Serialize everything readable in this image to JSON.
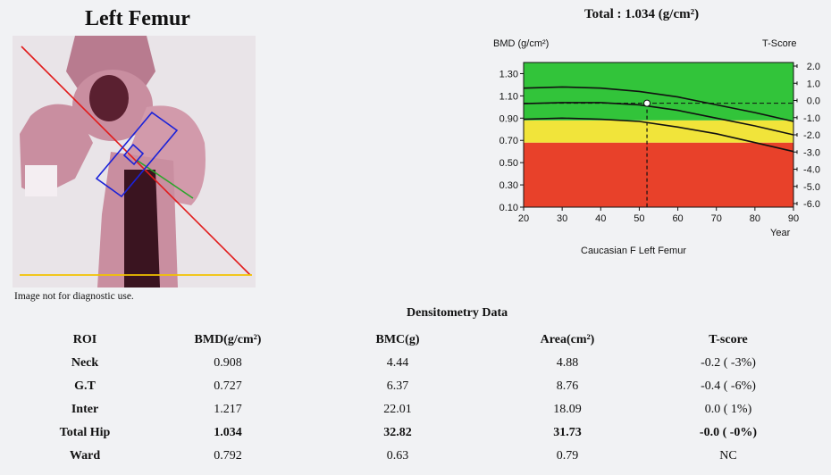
{
  "header": {
    "title": "Left Femur",
    "total": "Total :  1.034 (g/cm²)"
  },
  "scan": {
    "disclaimer": "Image not for diagnostic use."
  },
  "chart_data": {
    "type": "line",
    "ylabel": "BMD (g/cm²)",
    "y2label": "T-Score",
    "xlabel": "Caucasian F Left Femur",
    "x_unit": "Year",
    "x_ticks": [
      20,
      30,
      40,
      50,
      60,
      70,
      80,
      90
    ],
    "y_ticks": [
      "1.30",
      "1.10",
      "0.90",
      "0.70",
      "0.50",
      "0.30",
      "0.10"
    ],
    "y_tick_values": [
      1.3,
      1.1,
      0.9,
      0.7,
      0.5,
      0.3,
      0.1
    ],
    "t_ticks": [
      "2.0",
      "1.0",
      "0.0",
      "-1.0",
      "-2.0",
      "-3.0",
      "-4.0",
      "-5.0",
      "-6.0"
    ],
    "t_tick_values": [
      2.0,
      1.0,
      0.0,
      -1.0,
      -2.0,
      -3.0,
      -4.0,
      -5.0,
      -6.0
    ],
    "xlim": [
      20,
      90
    ],
    "ylim": [
      0.1,
      1.4
    ],
    "bands": [
      {
        "from": 0.1,
        "to": 0.68,
        "color": "#e8412a"
      },
      {
        "from": 0.68,
        "to": 0.88,
        "color": "#f1e43a"
      },
      {
        "from": 0.88,
        "to": 1.4,
        "color": "#32c43a"
      }
    ],
    "series": [
      {
        "x": [
          20,
          30,
          40,
          50,
          60,
          70,
          80,
          90
        ],
        "values": [
          1.17,
          1.18,
          1.17,
          1.14,
          1.09,
          1.02,
          0.95,
          0.87
        ]
      },
      {
        "x": [
          20,
          30,
          40,
          50,
          60,
          70,
          80,
          90
        ],
        "values": [
          1.03,
          1.04,
          1.04,
          1.02,
          0.97,
          0.9,
          0.83,
          0.75
        ]
      },
      {
        "x": [
          20,
          30,
          40,
          50,
          60,
          70,
          80,
          90
        ],
        "values": [
          0.89,
          0.9,
          0.89,
          0.87,
          0.82,
          0.76,
          0.68,
          0.6
        ]
      }
    ],
    "reference_line": 1.034,
    "patient_point": {
      "x": 52,
      "y": 1.034
    },
    "colors": {
      "curve": "#111111",
      "point": "#ffffff"
    }
  },
  "densitometry": {
    "title": "Densitometry Data",
    "headers": [
      "ROI",
      "BMD(g/cm²)",
      "BMC(g)",
      "Area(cm²)",
      "T-score"
    ],
    "rows": [
      [
        "Neck",
        "0.908",
        "4.44",
        "4.88",
        "-0.2 ( -3%)"
      ],
      [
        "G.T",
        "0.727",
        "6.37",
        "8.76",
        "-0.4 ( -6%)"
      ],
      [
        "Inter",
        "1.217",
        "22.01",
        "18.09",
        "0.0 (  1%)"
      ],
      [
        "Total Hip",
        "1.034",
        "32.82",
        "31.73",
        "-0.0 ( -0%)"
      ],
      [
        "Ward",
        "0.792",
        "0.63",
        "0.79",
        "NC"
      ]
    ]
  }
}
